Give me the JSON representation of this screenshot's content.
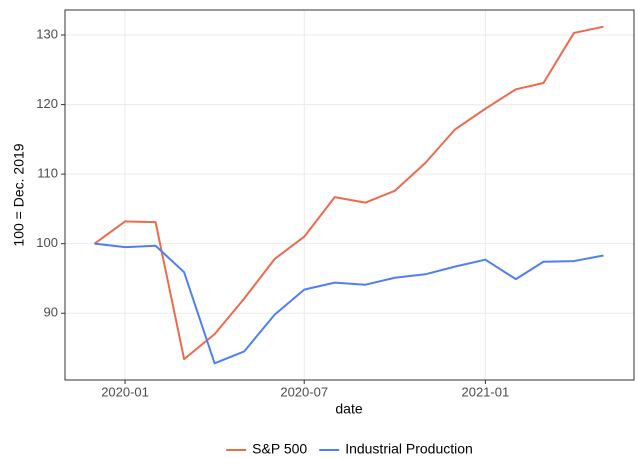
{
  "chart_data": {
    "type": "line",
    "x_label": "date",
    "y_label": "100 = Dec. 2019",
    "x": [
      "2019-12",
      "2020-01",
      "2020-02",
      "2020-03",
      "2020-04",
      "2020-05",
      "2020-06",
      "2020-07",
      "2020-08",
      "2020-09",
      "2020-10",
      "2020-11",
      "2020-12",
      "2021-01",
      "2021-02",
      "2021-03",
      "2021-04",
      "2021-05"
    ],
    "series": [
      {
        "name": "S&P 500",
        "color": "#ee6a4c",
        "values": [
          100,
          103.2,
          103.1,
          83.4,
          87.0,
          92.1,
          97.8,
          101.0,
          106.7,
          105.9,
          107.6,
          111.6,
          116.4,
          119.4,
          122.2,
          123.1,
          130.3,
          131.2
        ]
      },
      {
        "name": "Industrial Production",
        "color": "#4f7ff5",
        "values": [
          100,
          99.5,
          99.7,
          95.9,
          82.8,
          84.5,
          89.8,
          93.4,
          94.4,
          94.1,
          95.1,
          95.6,
          96.7,
          97.7,
          94.9,
          97.4,
          97.5,
          98.3
        ]
      }
    ],
    "xlim": [
      "2019-11",
      "2021-06"
    ],
    "xticks": [
      "2020-01",
      "2020-07",
      "2021-01"
    ],
    "ylim": [
      80.4,
      133.6
    ],
    "yticks": [
      90,
      100,
      110,
      120,
      130
    ],
    "grid": true,
    "legend": "bottom"
  }
}
